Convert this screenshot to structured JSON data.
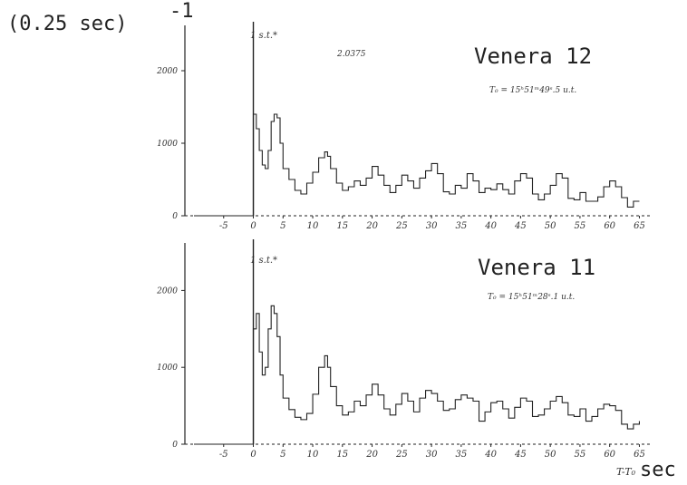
{
  "y_axis_label": "(0.25 sec)",
  "y_axis_superscript": "-1",
  "x_axis_unit": "sec",
  "x_axis_symbol": "T-T₀",
  "colors": {
    "ink": "#222222",
    "background": "#ffffff"
  },
  "chart_data": [
    {
      "type": "line",
      "step": true,
      "title": "Venera 12",
      "time_annotation": "T₀ = 15ʰ51ᵐ49ˢ.5 u.t.",
      "marker_label": "1 s.t.*",
      "extra_annotation": "2.0375",
      "xlim": [
        -10,
        66
      ],
      "ylim": [
        0,
        2500
      ],
      "x_ticks": [
        -5,
        0,
        5,
        10,
        15,
        20,
        25,
        30,
        35,
        40,
        45,
        50,
        55,
        60,
        65
      ],
      "x_tick_labels": [
        "-5",
        "0",
        "5",
        "10",
        "15",
        "20",
        "25",
        "30",
        "35",
        "40",
        "45",
        "50",
        "55",
        "60",
        "65"
      ],
      "y_ticks": [
        0,
        1000,
        2000
      ],
      "y_tick_labels": [
        "0",
        "1000",
        "2000"
      ],
      "series": [
        {
          "x": [
            -10,
            0,
            0.5,
            1,
            1.5,
            2,
            2.5,
            3,
            3.5,
            4,
            4.5,
            5,
            6,
            7,
            8,
            9,
            10,
            11,
            12,
            12.5,
            13,
            14,
            15,
            16,
            17,
            18,
            19,
            20,
            21,
            22,
            23,
            24,
            25,
            26,
            27,
            28,
            29,
            30,
            31,
            32,
            33,
            34,
            35,
            36,
            37,
            38,
            39,
            40,
            41,
            42,
            43,
            44,
            45,
            46,
            47,
            48,
            49,
            50,
            51,
            52,
            53,
            54,
            55,
            56,
            57,
            58,
            59,
            60,
            61,
            62,
            63,
            64,
            65
          ],
          "y": [
            0,
            1400,
            1200,
            900,
            700,
            650,
            900,
            1300,
            1400,
            1350,
            1000,
            650,
            500,
            350,
            300,
            450,
            600,
            800,
            880,
            820,
            650,
            450,
            350,
            400,
            480,
            420,
            520,
            680,
            560,
            420,
            320,
            420,
            560,
            480,
            380,
            520,
            620,
            720,
            580,
            330,
            300,
            420,
            380,
            580,
            480,
            320,
            380,
            360,
            440,
            360,
            300,
            480,
            580,
            520,
            300,
            220,
            300,
            420,
            580,
            520,
            240,
            220,
            320,
            200,
            200,
            260,
            400,
            480,
            400,
            250,
            120,
            200,
            200
          ]
        }
      ]
    },
    {
      "type": "line",
      "step": true,
      "title": "Venera 11",
      "time_annotation": "T₀ = 15ʰ51ᵐ28ˢ.1 u.t.",
      "marker_label": "1 s.t.*",
      "xlim": [
        -10,
        66
      ],
      "ylim": [
        0,
        2500
      ],
      "x_ticks": [
        -5,
        0,
        5,
        10,
        15,
        20,
        25,
        30,
        35,
        40,
        45,
        50,
        55,
        60,
        65
      ],
      "x_tick_labels": [
        "-5",
        "0",
        "5",
        "10",
        "15",
        "20",
        "25",
        "30",
        "35",
        "40",
        "45",
        "50",
        "55",
        "60",
        "65"
      ],
      "y_ticks": [
        0,
        1000,
        2000
      ],
      "y_tick_labels": [
        "0",
        "1000",
        "2000"
      ],
      "series": [
        {
          "x": [
            -10,
            0,
            0.5,
            1,
            1.5,
            2,
            2.5,
            3,
            3.5,
            4,
            4.5,
            5,
            6,
            7,
            8,
            9,
            10,
            11,
            12,
            12.5,
            13,
            14,
            15,
            16,
            17,
            18,
            19,
            20,
            21,
            22,
            23,
            24,
            25,
            26,
            27,
            28,
            29,
            30,
            31,
            32,
            33,
            34,
            35,
            36,
            37,
            38,
            39,
            40,
            41,
            42,
            43,
            44,
            45,
            46,
            47,
            48,
            49,
            50,
            51,
            52,
            53,
            54,
            55,
            56,
            57,
            58,
            59,
            60,
            61,
            62,
            63,
            64,
            65
          ],
          "y": [
            0,
            1500,
            1700,
            1200,
            900,
            1000,
            1500,
            1800,
            1700,
            1400,
            900,
            600,
            450,
            350,
            320,
            400,
            650,
            1000,
            1150,
            1000,
            750,
            500,
            380,
            420,
            560,
            500,
            640,
            780,
            640,
            460,
            380,
            520,
            660,
            560,
            420,
            600,
            700,
            660,
            560,
            440,
            460,
            580,
            640,
            600,
            560,
            300,
            420,
            540,
            560,
            460,
            340,
            480,
            600,
            560,
            360,
            380,
            460,
            560,
            620,
            540,
            380,
            360,
            460,
            300,
            360,
            460,
            520,
            500,
            440,
            260,
            200,
            260,
            300
          ]
        }
      ]
    }
  ]
}
